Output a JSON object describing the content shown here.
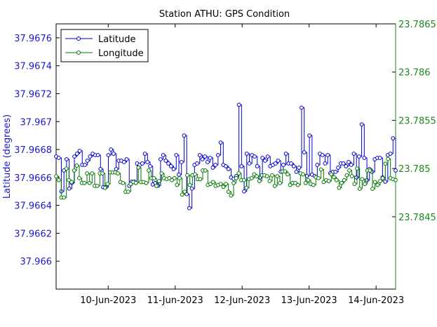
{
  "chart_data": {
    "type": "line",
    "title": "Station ATHU: GPS Condition",
    "x_ticks": [
      "10-Jun-2023",
      "11-Jun-2023",
      "12-Jun-2023",
      "13-Jun-2023",
      "14-Jun-2023"
    ],
    "x_range": [
      "2023-06-09 05:20",
      "2023-06-14 07:00"
    ],
    "y_left": {
      "label": "Latitude (degrees)",
      "range": [
        37.9658,
        37.9677
      ],
      "ticks": [
        "37.966",
        "37.9662",
        "37.9664",
        "37.9666",
        "37.9668",
        "37.967",
        "37.9672",
        "37.9674",
        "37.9676"
      ],
      "color": "#1a1acc"
    },
    "y_right": {
      "label": "",
      "range": [
        23.78375,
        23.7865
      ],
      "ticks": [
        "23.7845",
        "23.785",
        "23.7855",
        "23.786",
        "23.7865"
      ],
      "color": "#1a8a1a"
    },
    "legend": {
      "placement": "top-left"
    },
    "series": [
      {
        "name": "Latitude",
        "axis": "left",
        "color": "#0000cc",
        "values": [
          37.96675,
          37.96674,
          37.9665,
          37.96665,
          37.96673,
          37.96652,
          37.96656,
          37.96675,
          37.96677,
          37.96679,
          37.96669,
          37.96669,
          37.96672,
          37.96675,
          37.96677,
          37.96676,
          37.96676,
          37.96666,
          37.96653,
          37.96653,
          37.96676,
          37.9668,
          37.96677,
          37.96666,
          37.96672,
          37.96672,
          37.96671,
          37.96673,
          37.96654,
          37.96657,
          37.96657,
          37.9667,
          37.96669,
          37.9667,
          37.96677,
          37.96671,
          37.96668,
          37.96655,
          37.96656,
          37.96654,
          37.96673,
          37.96676,
          37.96672,
          37.9667,
          37.96668,
          37.96666,
          37.96676,
          37.96662,
          37.96671,
          37.9669,
          37.96648,
          37.96638,
          37.96652,
          37.96669,
          37.9667,
          37.96676,
          37.96673,
          37.96675,
          37.96671,
          37.96674,
          37.96667,
          37.96669,
          37.96676,
          37.96685,
          37.96669,
          37.96668,
          37.96666,
          37.9666,
          37.96659,
          37.96661,
          37.96712,
          37.96668,
          37.9665,
          37.96677,
          37.9667,
          37.96676,
          37.96675,
          37.96668,
          37.9666,
          37.96674,
          37.96672,
          37.96675,
          37.96668,
          37.96669,
          37.9667,
          37.96672,
          37.96664,
          37.96669,
          37.96677,
          37.9667,
          37.9667,
          37.96668,
          37.96664,
          37.96667,
          37.9671,
          37.96678,
          37.96661,
          37.9669,
          37.96662,
          37.96661,
          37.96669,
          37.96677,
          37.96676,
          37.9667,
          37.96676,
          37.96663,
          37.96664,
          37.96664,
          37.96667,
          37.9667,
          37.9667,
          37.96668,
          37.96671,
          37.96669,
          37.96677,
          37.9666,
          37.96675,
          37.96698,
          37.96674,
          37.96658,
          37.96666,
          37.96664,
          37.96673,
          37.96674,
          37.96674,
          37.9666,
          37.96657,
          37.96676,
          37.96677,
          37.96688,
          37.96665
        ]
      },
      {
        "name": "Longitude",
        "axis": "right",
        "color": "#007700",
        "values": [
          23.78492,
          23.78488,
          23.7847,
          23.7847,
          23.785,
          23.78488,
          23.78486,
          23.78498,
          23.78503,
          23.7849,
          23.78485,
          23.78485,
          23.78495,
          23.78485,
          23.78495,
          23.78482,
          23.78482,
          23.78495,
          23.78495,
          23.7848,
          23.78484,
          23.78496,
          23.78496,
          23.78496,
          23.78495,
          23.78486,
          23.78485,
          23.78476,
          23.78476,
          23.78484,
          23.78486,
          23.78485,
          23.78501,
          23.78486,
          23.78486,
          23.78485,
          23.78498,
          23.7849,
          23.7849,
          23.78482,
          23.78487,
          23.78495,
          23.7849,
          23.78489,
          23.7849,
          23.78488,
          23.7849,
          23.78483,
          23.7849,
          23.78473,
          23.78476,
          23.78493,
          23.78483,
          23.78493,
          23.78494,
          23.78489,
          23.78489,
          23.78498,
          23.78498,
          23.78483,
          23.78484,
          23.78486,
          23.78482,
          23.78483,
          23.78484,
          23.78481,
          23.78484,
          23.78476,
          23.78472,
          23.78485,
          23.7849,
          23.78495,
          23.78488,
          23.78488,
          23.7848,
          23.78489,
          23.7849,
          23.78494,
          23.78492,
          23.78487,
          23.78493,
          23.78493,
          23.78492,
          23.78487,
          23.78493,
          23.78482,
          23.78492,
          23.78485,
          23.78497,
          23.78497,
          23.78494,
          23.78483,
          23.78485,
          23.78485,
          23.78483,
          23.78495,
          23.78494,
          23.78485,
          23.78488,
          23.78484,
          23.78483,
          23.78491,
          23.7849,
          23.78499,
          23.78486,
          23.78488,
          23.78487,
          23.78494,
          23.78491,
          23.78488,
          23.7848,
          23.78485,
          23.78488,
          23.78493,
          23.78498,
          23.78492,
          23.78484,
          23.785,
          23.78479,
          23.78489,
          23.78484,
          23.78498,
          23.78498,
          23.78479,
          23.78486,
          23.78483,
          23.78487,
          23.7849,
          23.78505,
          23.7851,
          23.7849,
          23.78489,
          23.78488
        ]
      }
    ]
  }
}
